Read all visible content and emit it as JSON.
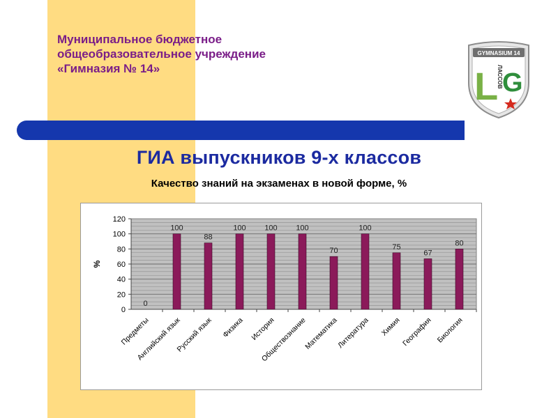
{
  "header": {
    "org_lines": [
      "Муниципальное бюджетное",
      "общеобразовательное учреждение",
      "«Гимназия № 14»"
    ],
    "title": "ГИА выпускников 9-х классов",
    "subtitle": "Качество знаний на экзаменах в новой форме, %"
  },
  "logo": {
    "banner": "GYMNASIUM 14",
    "left_letter": "L",
    "side_text": "ЛАССОВ",
    "right_letter": "G"
  },
  "colors": {
    "accent_stripe": "#ffdc82",
    "blue_bar": "#1537ad",
    "org_text": "#7a1d88",
    "title_text": "#1b2aa0",
    "bar_fill": "#8b1a5a",
    "plot_bg": "#c0c0c0"
  },
  "chart_data": {
    "type": "bar",
    "categories": [
      "Предметы",
      "Английский язык",
      "Русский язык",
      "Физика",
      "История",
      "Обществознание",
      "Математика",
      "Литература",
      "Химия",
      "География",
      "Биология"
    ],
    "values": [
      0,
      100,
      88,
      100,
      100,
      100,
      70,
      100,
      75,
      67,
      80
    ],
    "data_labels": [
      "0",
      "100",
      "88",
      "100",
      "100",
      "100",
      "70",
      "100",
      "75",
      "67",
      "80"
    ],
    "ylabel": "%",
    "ylim": [
      0,
      120
    ],
    "yticks": [
      0,
      20,
      40,
      60,
      80,
      100,
      120
    ],
    "grid": true,
    "legend": "none"
  }
}
